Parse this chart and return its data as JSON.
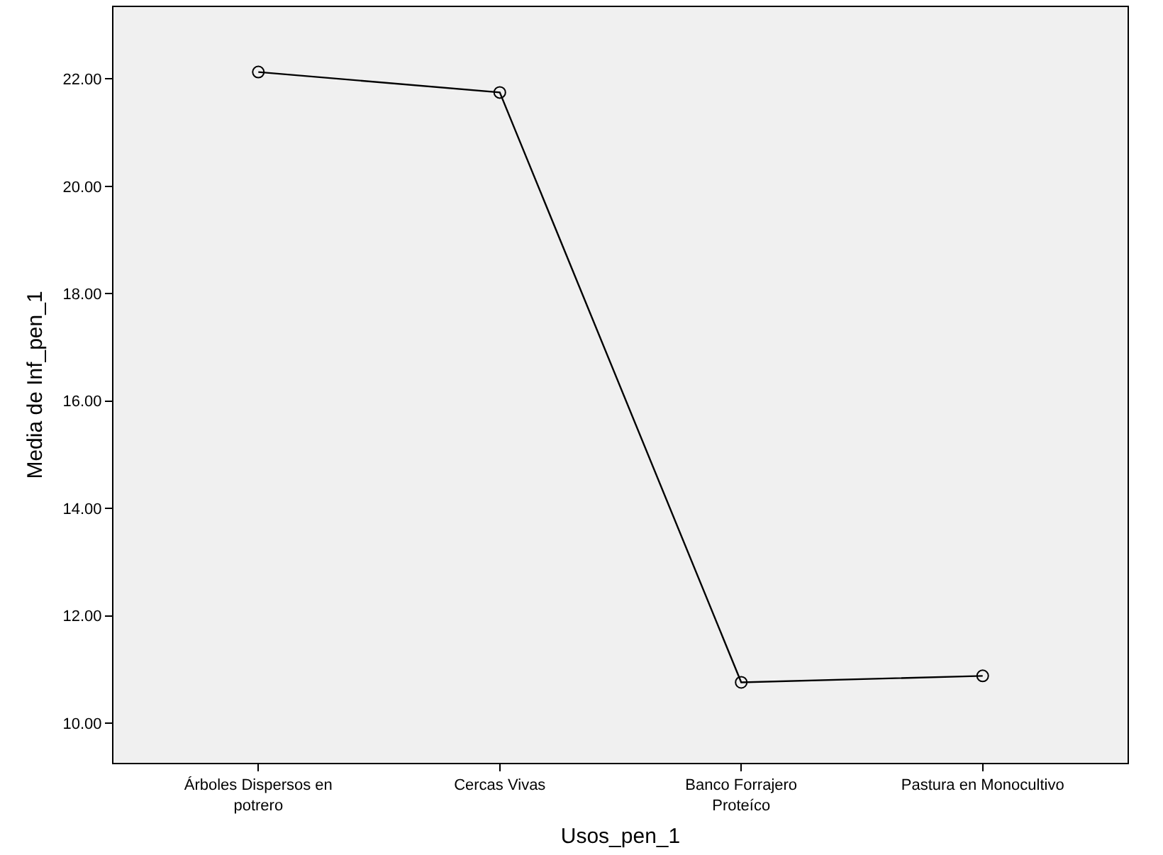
{
  "chart_data": {
    "type": "line",
    "xlabel": "Usos_pen_1",
    "ylabel": "Media de Inf_pen_1",
    "categories": [
      "Árboles Dispersos en potrero",
      "Cercas Vivas",
      "Banco Forrajero Proteíco",
      "Pastura en Monocultivo"
    ],
    "series": [
      {
        "color": "#000000",
        "values": [
          22.13,
          21.75,
          10.76,
          10.88
        ]
      }
    ],
    "ylim": [
      9.26,
      23.34
    ],
    "yticks": [
      {
        "value": 10,
        "label": "10.00"
      },
      {
        "value": 12,
        "label": "12.00"
      },
      {
        "value": 14,
        "label": "14.00"
      },
      {
        "value": 16,
        "label": "16.00"
      },
      {
        "value": 18,
        "label": "18.00"
      },
      {
        "value": 20,
        "label": "20.00"
      },
      {
        "value": 22,
        "label": "22.00"
      }
    ],
    "grid": false,
    "legend": false,
    "marker": "circle",
    "line_style": "solid"
  }
}
